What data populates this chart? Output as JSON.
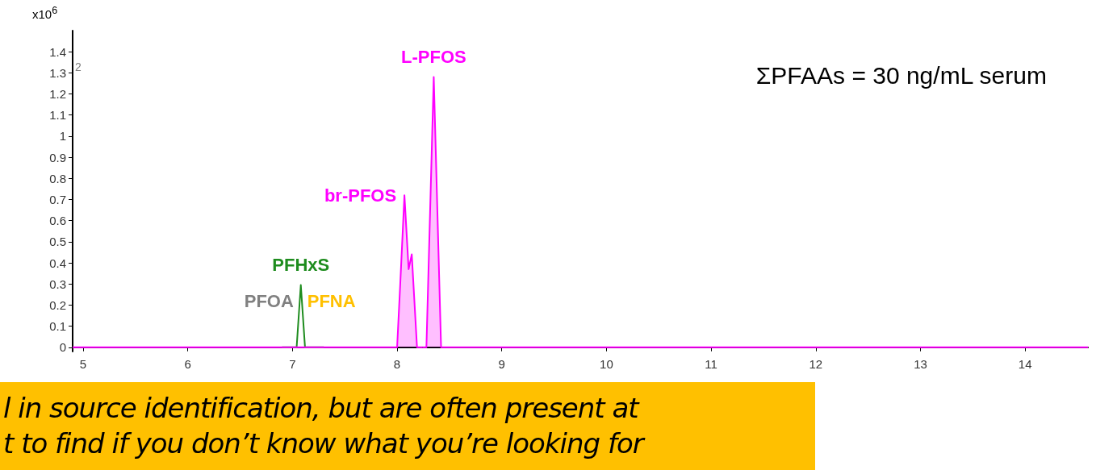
{
  "chart_data": {
    "type": "line",
    "ylabel": "x10$^{6}$",
    "xlim": [
      4.9,
      14.6
    ],
    "xticks": [
      5,
      6,
      7,
      8,
      9,
      10,
      11,
      12,
      13,
      14
    ],
    "ylim": [
      -0.02,
      1.5
    ],
    "yticks": [
      0,
      0.1,
      0.2,
      0.3,
      0.4,
      0.5,
      0.6,
      0.7,
      0.8,
      0.9,
      1,
      1.1,
      1.2,
      1.3,
      1.4
    ],
    "grid": false,
    "legend": false,
    "series": [
      {
        "name": "PFHxS",
        "type": "line",
        "color": "#1e8c1e",
        "x": [
          6.9,
          7.04,
          7.08,
          7.12,
          7.3
        ],
        "values": [
          0,
          0,
          0.295,
          0,
          0
        ]
      },
      {
        "name": "br-PFOS",
        "type": "area",
        "color": "#ff00ff",
        "x": [
          4.9,
          8.0,
          8.03,
          8.07,
          8.11,
          8.14,
          8.19,
          8.24
        ],
        "values": [
          0,
          0,
          0.3,
          0.72,
          0.37,
          0.44,
          0,
          0
        ]
      },
      {
        "name": "L-PFOS",
        "type": "area",
        "color": "#ff00ff",
        "x": [
          8.24,
          8.28,
          8.35,
          8.42,
          14.6
        ],
        "values": [
          0,
          0,
          1.28,
          0,
          0
        ]
      }
    ],
    "annotations": [
      "ΣPFAAs = 30 ng/mL serum",
      "2",
      "l in source identification, but are often present at",
      "t to find if you don’t know what you’re looking for",
      "PFOA",
      "PFNA"
    ]
  }
}
